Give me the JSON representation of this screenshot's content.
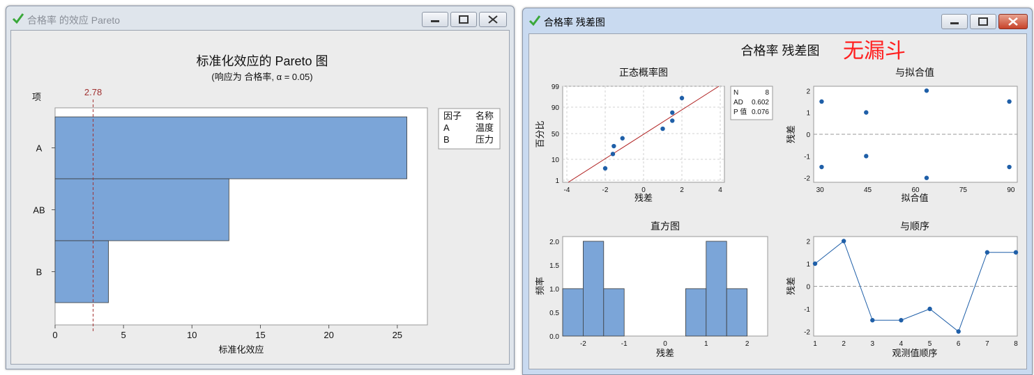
{
  "left_window": {
    "title": "合格率 的效应 Pareto",
    "chart_title": "标准化效应的 Pareto 图",
    "subtitle": "(响应为 合格率, α = 0.05)",
    "y_header": "项",
    "xlabel": "标准化效应",
    "legend": {
      "col1": "因子",
      "col2": "名称",
      "rows": [
        [
          "A",
          "温度"
        ],
        [
          "B",
          "压力"
        ]
      ]
    }
  },
  "right_window": {
    "title": "合格率 残差图",
    "main_title": "合格率 残差图",
    "annotation": "无漏斗",
    "stats": {
      "n_label": "N",
      "n": "8",
      "ad_label": "AD",
      "ad": "0.602",
      "p_label": "P 值",
      "p": "0.076"
    }
  },
  "chart_data": [
    {
      "type": "bar",
      "orientation": "horizontal",
      "title": "标准化效应的 Pareto 图",
      "xlabel": "标准化效应",
      "categories": [
        "A",
        "AB",
        "B"
      ],
      "values": [
        25.7,
        12.7,
        3.9
      ],
      "reference_line": {
        "value": 2.78,
        "label": "2.78",
        "color": "#a03030"
      },
      "xlim": [
        0,
        27.2
      ],
      "xticks": [
        "0",
        "5",
        "10",
        "15",
        "20",
        "25"
      ],
      "bar_color": "#7ba5d8"
    },
    {
      "type": "scatter",
      "title": "正态概率图",
      "xlabel": "残差",
      "ylabel": "百分比",
      "x": [
        -2.0,
        -1.6,
        -1.55,
        -1.1,
        1.0,
        1.5,
        1.5,
        2.0
      ],
      "y": [
        6.1,
        18.3,
        30.5,
        42.7,
        57.3,
        69.5,
        81.7,
        93.9
      ],
      "xlim": [
        -4,
        4
      ],
      "xticks": [
        "-4",
        "-2",
        "0",
        "2",
        "4"
      ],
      "yticks": [
        "1",
        "10",
        "50",
        "90",
        "99"
      ],
      "fit_line": true
    },
    {
      "type": "scatter",
      "title": "与拟合值",
      "xlabel": "拟合值",
      "ylabel": "残差",
      "x": [
        30.5,
        30.5,
        44.5,
        44.5,
        63.5,
        63.5,
        89.5,
        89.5
      ],
      "y": [
        1.5,
        -1.5,
        1.0,
        -1.0,
        2.0,
        -2.0,
        1.5,
        -1.5
      ],
      "xlim": [
        28,
        92
      ],
      "ylim": [
        -2.2,
        2.2
      ],
      "xticks": [
        "30",
        "45",
        "60",
        "75",
        "90"
      ],
      "yticks": [
        "-2",
        "-1",
        "0",
        "1",
        "2"
      ]
    },
    {
      "type": "bar",
      "title": "直方图",
      "xlabel": "残差",
      "ylabel": "频率",
      "bin_centers": [
        -2.25,
        -1.75,
        -1.25,
        0.75,
        1.25,
        1.75
      ],
      "values": [
        1,
        2,
        1,
        1,
        2,
        1
      ],
      "bin_width": 0.5,
      "xlim": [
        -2.5,
        2.5
      ],
      "ylim": [
        0,
        2.1
      ],
      "xticks": [
        "-2",
        "-1",
        "0",
        "1",
        "2"
      ],
      "yticks": [
        "0.0",
        "0.5",
        "1.0",
        "1.5",
        "2.0"
      ]
    },
    {
      "type": "line",
      "title": "与顺序",
      "xlabel": "观测值顺序",
      "ylabel": "残差",
      "x": [
        1,
        2,
        3,
        4,
        5,
        6,
        7,
        8
      ],
      "y": [
        1.0,
        2.0,
        -1.5,
        -1.5,
        -1.0,
        -2.0,
        1.5,
        1.5
      ],
      "xlim": [
        1,
        8
      ],
      "ylim": [
        -2.2,
        2.2
      ],
      "xticks": [
        "1",
        "2",
        "3",
        "4",
        "5",
        "6",
        "7",
        "8"
      ],
      "yticks": [
        "-2",
        "-1",
        "0",
        "1",
        "2"
      ]
    }
  ]
}
